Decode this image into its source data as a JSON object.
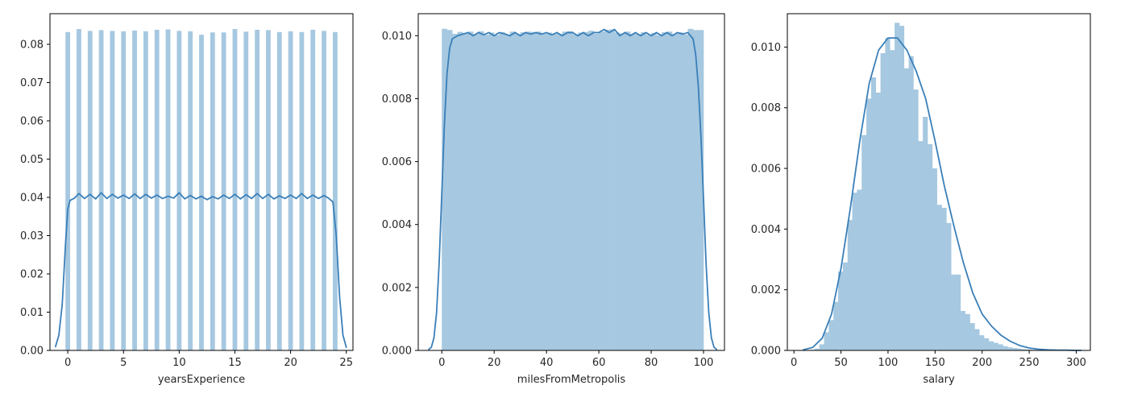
{
  "chart_data": [
    {
      "type": "histogram",
      "xlabel": "yearsExperience",
      "ylabel": "",
      "xlim": [
        -1.6,
        25.6
      ],
      "ylim": [
        0,
        0.088
      ],
      "xticks": [
        0,
        5,
        10,
        15,
        20,
        25
      ],
      "yticks": [
        0.0,
        0.01,
        0.02,
        0.03,
        0.04,
        0.05,
        0.06,
        0.07,
        0.08
      ],
      "ytick_labels": [
        "0.00",
        "0.01",
        "0.02",
        "0.03",
        "0.04",
        "0.05",
        "0.06",
        "0.07",
        "0.08"
      ],
      "bar_color": "#a6c8e0",
      "line_color": "#3a7fb8",
      "bar_width": 0.42,
      "bins": [
        {
          "x": 0,
          "density": 0.0832
        },
        {
          "x": 1,
          "density": 0.084
        },
        {
          "x": 2,
          "density": 0.0835
        },
        {
          "x": 3,
          "density": 0.0837
        },
        {
          "x": 4,
          "density": 0.0835
        },
        {
          "x": 5,
          "density": 0.0834
        },
        {
          "x": 6,
          "density": 0.0836
        },
        {
          "x": 7,
          "density": 0.0834
        },
        {
          "x": 8,
          "density": 0.0838
        },
        {
          "x": 9,
          "density": 0.0839
        },
        {
          "x": 10,
          "density": 0.0835
        },
        {
          "x": 11,
          "density": 0.0834
        },
        {
          "x": 12,
          "density": 0.0825
        },
        {
          "x": 13,
          "density": 0.0831
        },
        {
          "x": 14,
          "density": 0.0831
        },
        {
          "x": 15,
          "density": 0.084
        },
        {
          "x": 16,
          "density": 0.0833
        },
        {
          "x": 17,
          "density": 0.0838
        },
        {
          "x": 18,
          "density": 0.0837
        },
        {
          "x": 19,
          "density": 0.0832
        },
        {
          "x": 20,
          "density": 0.0834
        },
        {
          "x": 21,
          "density": 0.0832
        },
        {
          "x": 22,
          "density": 0.0838
        },
        {
          "x": 23,
          "density": 0.0835
        },
        {
          "x": 24,
          "density": 0.0832
        }
      ],
      "kde": {
        "x": [
          -1.1,
          -0.8,
          -0.5,
          -0.2,
          0,
          0.2,
          0.6,
          1,
          1.5,
          2,
          2.5,
          3,
          3.5,
          4,
          4.5,
          5,
          5.5,
          6,
          6.5,
          7,
          7.5,
          8,
          8.5,
          9,
          9.5,
          10,
          10.5,
          11,
          11.5,
          12,
          12.5,
          13,
          13.5,
          14,
          14.5,
          15,
          15.5,
          16,
          16.5,
          17,
          17.5,
          18,
          18.5,
          19,
          19.5,
          20,
          20.5,
          21,
          21.5,
          22,
          22.5,
          23,
          23.4,
          23.8,
          24.1,
          24.4,
          24.7,
          25.0
        ],
        "y": [
          0.001,
          0.004,
          0.012,
          0.028,
          0.037,
          0.0392,
          0.0398,
          0.041,
          0.0397,
          0.0408,
          0.0396,
          0.0412,
          0.0397,
          0.0408,
          0.0398,
          0.0406,
          0.0397,
          0.0409,
          0.0397,
          0.0408,
          0.0398,
          0.0406,
          0.0397,
          0.0403,
          0.0398,
          0.0412,
          0.0396,
          0.0405,
          0.0396,
          0.0403,
          0.0394,
          0.0402,
          0.0396,
          0.0406,
          0.0397,
          0.0408,
          0.0396,
          0.0407,
          0.0397,
          0.041,
          0.0397,
          0.0408,
          0.0396,
          0.0404,
          0.0397,
          0.0406,
          0.0397,
          0.041,
          0.0397,
          0.0406,
          0.0397,
          0.0405,
          0.0398,
          0.0388,
          0.03,
          0.014,
          0.004,
          0.0008
        ]
      }
    },
    {
      "type": "histogram",
      "xlabel": "milesFromMetropolis",
      "ylabel": "",
      "xlim": [
        -9,
        108
      ],
      "ylim": [
        0,
        0.0107
      ],
      "xticks": [
        0,
        20,
        40,
        60,
        80,
        100
      ],
      "yticks": [
        0.0,
        0.002,
        0.004,
        0.006,
        0.008,
        0.01
      ],
      "ytick_labels": [
        "0.000",
        "0.002",
        "0.004",
        "0.006",
        "0.008",
        "0.010"
      ],
      "bar_color": "#a6c8e0",
      "line_color": "#3a7fb8",
      "bin_edges": [
        0,
        2,
        4,
        6,
        8,
        10,
        12,
        14,
        16,
        18,
        20,
        22,
        24,
        26,
        28,
        30,
        32,
        34,
        36,
        38,
        40,
        42,
        44,
        46,
        48,
        50,
        52,
        54,
        56,
        58,
        60,
        62,
        64,
        66,
        68,
        70,
        72,
        74,
        76,
        78,
        80,
        82,
        84,
        86,
        88,
        90,
        92,
        94,
        96,
        98,
        100
      ],
      "densities": [
        0.01022,
        0.01018,
        0.01006,
        0.01012,
        0.01008,
        0.01013,
        0.01005,
        0.01014,
        0.01003,
        0.0101,
        0.01002,
        0.01011,
        0.01003,
        0.01013,
        0.01005,
        0.01011,
        0.01013,
        0.01012,
        0.01013,
        0.01006,
        0.0101,
        0.01006,
        0.01006,
        0.01013,
        0.01014,
        0.01004,
        0.0101,
        0.01012,
        0.01016,
        0.01006,
        0.01013,
        0.01019,
        0.0102,
        0.0101,
        0.01007,
        0.01013,
        0.01006,
        0.01005,
        0.01011,
        0.01003,
        0.01009,
        0.01002,
        0.01011,
        0.01013,
        0.01005,
        0.01011,
        0.01004,
        0.01022,
        0.01018,
        0.01018
      ],
      "kde": {
        "x": [
          -5,
          -4,
          -3,
          -2,
          -1,
          0,
          1,
          2,
          3,
          4,
          6,
          8,
          10,
          12,
          14,
          16,
          18,
          20,
          22,
          24,
          26,
          28,
          30,
          32,
          34,
          36,
          38,
          40,
          42,
          44,
          46,
          48,
          50,
          52,
          54,
          56,
          58,
          60,
          62,
          64,
          66,
          68,
          70,
          72,
          74,
          76,
          78,
          80,
          82,
          84,
          86,
          88,
          90,
          92,
          94,
          96,
          97,
          98,
          99,
          100,
          101,
          102,
          103,
          104,
          105
        ],
        "y": [
          3e-05,
          0.0001,
          0.0004,
          0.0012,
          0.0028,
          0.005,
          0.0072,
          0.0088,
          0.0096,
          0.0099,
          0.01,
          0.01005,
          0.0101,
          0.01,
          0.0101,
          0.01003,
          0.0101,
          0.01,
          0.0101,
          0.01006,
          0.01,
          0.0101,
          0.01,
          0.0101,
          0.01005,
          0.0101,
          0.01005,
          0.0101,
          0.01003,
          0.0101,
          0.01,
          0.0101,
          0.0101,
          0.01,
          0.0101,
          0.01,
          0.0101,
          0.0101,
          0.0102,
          0.0101,
          0.0102,
          0.01,
          0.0101,
          0.01,
          0.0101,
          0.01,
          0.0101,
          0.01,
          0.0101,
          0.01,
          0.0101,
          0.01,
          0.0101,
          0.01005,
          0.0101,
          0.0099,
          0.0094,
          0.0084,
          0.0068,
          0.0048,
          0.0027,
          0.0012,
          0.0004,
          0.0001,
          3e-05
        ]
      }
    },
    {
      "type": "histogram",
      "xlabel": "salary",
      "ylabel": "",
      "xlim": [
        -7,
        315
      ],
      "ylim": [
        0,
        0.0111
      ],
      "xticks": [
        0,
        50,
        100,
        150,
        200,
        250,
        300
      ],
      "yticks": [
        0.0,
        0.002,
        0.004,
        0.006,
        0.008,
        0.01
      ],
      "ytick_labels": [
        "0.000",
        "0.002",
        "0.004",
        "0.006",
        "0.008",
        "0.010"
      ],
      "bar_color": "#a6c8e0",
      "line_color": "#3a7fb8",
      "bin_edges": [
        17,
        22,
        27,
        32,
        37,
        42,
        47,
        52,
        57,
        62,
        67,
        72,
        77,
        82,
        87,
        92,
        97,
        102,
        107,
        112,
        117,
        122,
        127,
        132,
        137,
        142,
        147,
        152,
        157,
        162,
        167,
        172,
        177,
        182,
        187,
        192,
        197,
        202,
        207,
        212,
        217,
        222,
        227,
        232,
        237,
        242,
        247,
        252,
        257,
        262,
        267,
        272,
        277,
        282,
        287,
        292,
        297,
        302
      ],
      "densities": [
        2e-05,
        6e-05,
        0.0002,
        0.0006,
        0.001,
        0.0016,
        0.0026,
        0.0029,
        0.0043,
        0.0052,
        0.0053,
        0.0071,
        0.0083,
        0.009,
        0.0085,
        0.0098,
        0.0103,
        0.0099,
        0.0108,
        0.0107,
        0.0093,
        0.0097,
        0.0086,
        0.0069,
        0.0077,
        0.0068,
        0.006,
        0.0048,
        0.0047,
        0.0042,
        0.0025,
        0.0025,
        0.0013,
        0.0012,
        0.0009,
        0.0007,
        0.0005,
        0.0004,
        0.0003,
        0.00025,
        0.0002,
        0.00014,
        0.0001,
        8e-05,
        6e-05,
        4e-05,
        3e-05,
        2e-05,
        2e-05,
        1e-05,
        1e-05,
        1e-05,
        1e-05,
        1e-05,
        1e-05,
        1e-05,
        1e-05
      ],
      "kde": {
        "x": [
          10,
          20,
          30,
          40,
          50,
          60,
          70,
          80,
          90,
          100,
          105,
          110,
          115,
          120,
          130,
          140,
          150,
          160,
          170,
          180,
          190,
          200,
          210,
          220,
          230,
          240,
          250,
          260,
          270,
          280,
          290,
          300,
          305
        ],
        "y": [
          2e-05,
          0.0001,
          0.0004,
          0.0012,
          0.0027,
          0.0047,
          0.0069,
          0.0088,
          0.0099,
          0.0103,
          0.0103,
          0.0103,
          0.0101,
          0.0099,
          0.0092,
          0.0083,
          0.0069,
          0.0054,
          0.0041,
          0.0029,
          0.0019,
          0.0012,
          0.0008,
          0.0005,
          0.0003,
          0.00016,
          8e-05,
          4e-05,
          2e-05,
          1e-05,
          1e-05,
          0.0,
          0.0
        ]
      }
    }
  ]
}
